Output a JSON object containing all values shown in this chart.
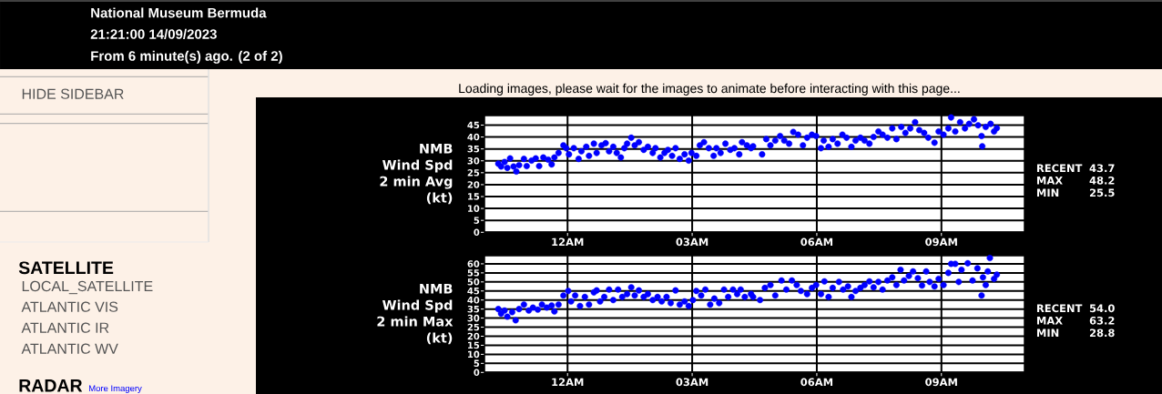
{
  "chart_data": [
    {
      "type": "other",
      "title": "National Museum Bermuda",
      "subtitle": "21:21:00 14/09/2023",
      "annotations": [
        "From 6 minute(s) ago. (2 of 2)",
        "Loading images, please wait for the images to animate before interacting with this page...",
        "HIDE SIDEBAR",
        "SATELLITE",
        "LOCAL_SATELLITE",
        "ATLANTIC VIS",
        "ATLANTIC IR",
        "ATLANTIC WV",
        "RADAR",
        "More Imagery"
      ]
    },
    {
      "type": "scatter",
      "ylabel": "NMB\nWind Spd\n2 min Avg\n(kt)",
      "annotations": [
        "RECENT",
        "43.7",
        "MAX",
        "48.2",
        "MIN",
        "25.5"
      ],
      "x": [
        "2023-09-13T22:20",
        "2023-09-13T22:24",
        "2023-09-13T22:29",
        "2023-09-13T22:33",
        "2023-09-13T22:37",
        "2023-09-13T22:42",
        "2023-09-13T22:46",
        "2023-09-13T22:50",
        "2023-09-13T22:57",
        "2023-09-13T23:01",
        "2023-09-13T23:08",
        "2023-09-13T23:14",
        "2023-09-13T23:19",
        "2023-09-13T23:25",
        "2023-09-13T23:32",
        "2023-09-13T23:37",
        "2023-09-13T23:41",
        "2023-09-13T23:47",
        "2023-09-13T23:54",
        "2023-09-13T23:58",
        "2023-09-14T00:02",
        "2023-09-14T00:09",
        "2023-09-14T00:16",
        "2023-09-14T00:20",
        "2023-09-14T00:27",
        "2023-09-14T00:31",
        "2023-09-14T00:38",
        "2023-09-14T00:42",
        "2023-09-14T00:49",
        "2023-09-14T00:55",
        "2023-09-14T01:00",
        "2023-09-14T01:06",
        "2023-09-14T01:11",
        "2023-09-14T01:17",
        "2023-09-14T01:22",
        "2023-09-14T01:26",
        "2023-09-14T01:32",
        "2023-09-14T01:37",
        "2023-09-14T01:43",
        "2023-09-14T01:50",
        "2023-09-14T01:56",
        "2023-09-14T02:03",
        "2023-09-14T02:07",
        "2023-09-14T02:14",
        "2023-09-14T02:20",
        "2023-09-14T02:25",
        "2023-09-14T02:31",
        "2023-09-14T02:36",
        "2023-09-14T02:42",
        "2023-09-14T02:49",
        "2023-09-14T02:55",
        "2023-09-14T02:59",
        "2023-09-14T03:06",
        "2023-09-14T03:11",
        "2023-09-14T03:17",
        "2023-09-14T03:24",
        "2023-09-14T03:31",
        "2023-09-14T03:35",
        "2023-09-14T03:41",
        "2023-09-14T03:48",
        "2023-09-14T03:55",
        "2023-09-14T04:01",
        "2023-09-14T04:08",
        "2023-09-14T04:12",
        "2023-09-14T04:19",
        "2023-09-14T04:25",
        "2023-09-14T04:28",
        "2023-09-14T04:41",
        "2023-09-14T04:47",
        "2023-09-14T04:53",
        "2023-09-14T05:00",
        "2023-09-14T05:07",
        "2023-09-14T05:13",
        "2023-09-14T05:20",
        "2023-09-14T05:26",
        "2023-09-14T05:33",
        "2023-09-14T05:40",
        "2023-09-14T05:46",
        "2023-09-14T05:53",
        "2023-09-14T05:59",
        "2023-09-14T06:06",
        "2023-09-14T06:10",
        "2023-09-14T06:17",
        "2023-09-14T06:23",
        "2023-09-14T06:30",
        "2023-09-14T06:37",
        "2023-09-14T06:43",
        "2023-09-14T06:50",
        "2023-09-14T06:56",
        "2023-09-14T07:03",
        "2023-09-14T07:09",
        "2023-09-14T07:16",
        "2023-09-14T07:22",
        "2023-09-14T07:29",
        "2023-09-14T07:35",
        "2023-09-14T07:42",
        "2023-09-14T07:49",
        "2023-09-14T07:55",
        "2023-09-14T08:02",
        "2023-09-14T08:08",
        "2023-09-14T08:15",
        "2023-09-14T08:22",
        "2023-09-14T08:28",
        "2023-09-14T08:35",
        "2023-09-14T08:41",
        "2023-09-14T08:50",
        "2023-09-14T08:56",
        "2023-09-14T09:03",
        "2023-09-14T09:10",
        "2023-09-14T09:14",
        "2023-09-14T09:20",
        "2023-09-14T09:27",
        "2023-09-14T09:34",
        "2023-09-14T09:40",
        "2023-09-14T09:47",
        "2023-09-14T09:53",
        "2023-09-14T09:58",
        "2023-09-14T09:59",
        "2023-09-14T10:04",
        "2023-09-14T10:11",
        "2023-09-14T10:16",
        "2023-09-14T10:20"
      ],
      "values": [
        28.8,
        27.6,
        29.5,
        27.0,
        31.0,
        27.6,
        25.5,
        28.2,
        30.8,
        27.8,
        30.1,
        31.0,
        27.8,
        31.4,
        30.5,
        28.5,
        31.4,
        33.3,
        36.5,
        35.3,
        32.7,
        35.3,
        30.8,
        34.0,
        35.9,
        32.1,
        37.2,
        33.3,
        36.5,
        37.4,
        34.0,
        35.9,
        33.3,
        31.4,
        35.3,
        37.2,
        39.7,
        36.5,
        37.8,
        34.6,
        35.9,
        33.3,
        35.3,
        31.4,
        33.3,
        34.6,
        32.1,
        35.3,
        30.8,
        32.7,
        30.1,
        33.3,
        32.1,
        36.5,
        37.8,
        35.3,
        32.1,
        35.3,
        33.3,
        37.2,
        34.6,
        35.3,
        32.7,
        37.8,
        36.5,
        35.3,
        36.1,
        32.7,
        39.1,
        36.5,
        38.5,
        40.4,
        38.5,
        37.2,
        42.1,
        41.0,
        36.5,
        39.7,
        41.0,
        40.4,
        35.3,
        38.5,
        35.9,
        39.1,
        37.2,
        41.0,
        39.7,
        35.9,
        38.5,
        39.7,
        38.5,
        37.2,
        40.0,
        42.3,
        41.0,
        39.7,
        43.6,
        39.1,
        44.2,
        41.7,
        43.6,
        46.2,
        42.9,
        41.7,
        39.7,
        37.6,
        42.3,
        41.0,
        43.6,
        48.2,
        42.3,
        46.2,
        43.6,
        45.5,
        47.4,
        44.9,
        40.4,
        36.1,
        44.2,
        45.5,
        42.3,
        43.7
      ],
      "color": "#0000ff",
      "marker": "circle",
      "grid": true,
      "xlim": [
        "2023-09-13T22:00",
        "2023-09-14T11:00"
      ],
      "ylim": [
        0,
        49
      ],
      "xticks": [
        {
          "value": "2023-09-14T00:00",
          "label": "12AM"
        },
        {
          "value": "2023-09-14T03:00",
          "label": "03AM"
        },
        {
          "value": "2023-09-14T06:00",
          "label": "06AM"
        },
        {
          "value": "2023-09-14T09:00",
          "label": "09AM"
        }
      ],
      "yticks": [
        0,
        5,
        10,
        15,
        20,
        25,
        30,
        35,
        40,
        45
      ]
    },
    {
      "type": "scatter",
      "ylabel": "NMB\nWind Spd\n2 min Max\n(kt)",
      "annotations": [
        "RECENT",
        "54.0",
        "MAX",
        "63.2",
        "MIN",
        "28.8"
      ],
      "x": [
        "2023-09-13T22:20",
        "2023-09-13T22:24",
        "2023-09-13T22:29",
        "2023-09-13T22:33",
        "2023-09-13T22:40",
        "2023-09-13T22:45",
        "2023-09-13T22:50",
        "2023-09-13T22:57",
        "2023-09-13T23:04",
        "2023-09-13T23:10",
        "2023-09-13T23:17",
        "2023-09-13T23:23",
        "2023-09-13T23:30",
        "2023-09-13T23:37",
        "2023-09-13T23:41",
        "2023-09-13T23:47",
        "2023-09-13T23:54",
        "2023-09-14T00:01",
        "2023-09-14T00:05",
        "2023-09-14T00:11",
        "2023-09-14T00:18",
        "2023-09-14T00:25",
        "2023-09-14T00:31",
        "2023-09-14T00:38",
        "2023-09-14T00:42",
        "2023-09-14T00:47",
        "2023-09-14T00:53",
        "2023-09-14T01:00",
        "2023-09-14T01:06",
        "2023-09-14T01:13",
        "2023-09-14T01:19",
        "2023-09-14T01:26",
        "2023-09-14T01:32",
        "2023-09-14T01:37",
        "2023-09-14T01:43",
        "2023-09-14T01:50",
        "2023-09-14T01:56",
        "2023-09-14T02:03",
        "2023-09-14T02:10",
        "2023-09-14T02:16",
        "2023-09-14T02:23",
        "2023-09-14T02:29",
        "2023-09-14T02:36",
        "2023-09-14T02:42",
        "2023-09-14T02:49",
        "2023-09-14T02:55",
        "2023-09-14T03:01",
        "2023-09-14T03:06",
        "2023-09-14T03:13",
        "2023-09-14T03:19",
        "2023-09-14T03:26",
        "2023-09-14T03:32",
        "2023-09-14T03:39",
        "2023-09-14T03:46",
        "2023-09-14T03:52",
        "2023-09-14T03:59",
        "2023-09-14T04:05",
        "2023-09-14T04:10",
        "2023-09-14T04:16",
        "2023-09-14T04:25",
        "2023-09-14T04:28",
        "2023-09-14T04:38",
        "2023-09-14T04:45",
        "2023-09-14T04:53",
        "2023-09-14T05:00",
        "2023-09-14T05:09",
        "2023-09-14T05:16",
        "2023-09-14T05:24",
        "2023-09-14T05:31",
        "2023-09-14T05:37",
        "2023-09-14T05:46",
        "2023-09-14T05:53",
        "2023-09-14T05:59",
        "2023-09-14T06:06",
        "2023-09-14T06:11",
        "2023-09-14T06:17",
        "2023-09-14T06:23",
        "2023-09-14T06:32",
        "2023-09-14T06:38",
        "2023-09-14T06:45",
        "2023-09-14T06:50",
        "2023-09-14T06:56",
        "2023-09-14T07:03",
        "2023-09-14T07:09",
        "2023-09-14T07:16",
        "2023-09-14T07:22",
        "2023-09-14T07:29",
        "2023-09-14T07:35",
        "2023-09-14T07:42",
        "2023-09-14T07:49",
        "2023-09-14T07:55",
        "2023-09-14T08:01",
        "2023-09-14T08:06",
        "2023-09-14T08:13",
        "2023-09-14T08:19",
        "2023-09-14T08:26",
        "2023-09-14T08:32",
        "2023-09-14T08:38",
        "2023-09-14T08:43",
        "2023-09-14T08:50",
        "2023-09-14T08:56",
        "2023-09-14T09:03",
        "2023-09-14T09:10",
        "2023-09-14T09:14",
        "2023-09-14T09:20",
        "2023-09-14T09:25",
        "2023-09-14T09:29",
        "2023-09-14T09:38",
        "2023-09-14T09:45",
        "2023-09-14T09:52",
        "2023-09-14T09:58",
        "2023-09-14T10:00",
        "2023-09-14T10:04",
        "2023-09-14T10:07",
        "2023-09-14T10:10",
        "2023-09-14T10:16",
        "2023-09-14T10:20"
      ],
      "values": [
        35.0,
        32.5,
        34.2,
        30.8,
        33.3,
        28.8,
        35.0,
        37.5,
        34.2,
        35.8,
        34.7,
        37.5,
        35.8,
        37.0,
        33.7,
        37.5,
        42.5,
        45.0,
        39.2,
        42.5,
        36.7,
        41.7,
        37.5,
        44.2,
        45.3,
        39.2,
        41.7,
        45.8,
        40.0,
        45.8,
        41.7,
        43.3,
        47.0,
        42.5,
        45.3,
        41.7,
        43.3,
        40.0,
        41.7,
        39.2,
        41.7,
        38.3,
        45.3,
        37.5,
        39.2,
        36.7,
        40.0,
        45.0,
        42.5,
        45.8,
        37.5,
        40.8,
        38.3,
        45.8,
        41.7,
        45.8,
        43.3,
        45.8,
        41.7,
        43.3,
        41.7,
        40.0,
        46.7,
        48.3,
        42.5,
        50.8,
        45.8,
        50.8,
        48.3,
        45.0,
        43.3,
        46.7,
        48.3,
        43.3,
        50.3,
        41.7,
        46.7,
        50.0,
        45.8,
        47.5,
        41.7,
        45.0,
        46.7,
        48.3,
        50.3,
        47.0,
        50.0,
        45.8,
        50.8,
        52.5,
        48.3,
        56.7,
        50.8,
        53.3,
        55.8,
        52.0,
        48.0,
        55.8,
        50.0,
        47.5,
        51.7,
        48.3,
        55.0,
        60.0,
        60.0,
        50.0,
        56.7,
        60.3,
        50.8,
        57.5,
        42.5,
        52.5,
        48.3,
        55.8,
        63.2,
        51.7,
        54.0
      ],
      "color": "#0000ff",
      "marker": "circle",
      "grid": true,
      "xlim": [
        "2023-09-13T22:00",
        "2023-09-14T11:00"
      ],
      "ylim": [
        0,
        64.5
      ],
      "xticks": [
        {
          "value": "2023-09-14T00:00",
          "label": "12AM"
        },
        {
          "value": "2023-09-14T03:00",
          "label": "03AM"
        },
        {
          "value": "2023-09-14T06:00",
          "label": "06AM"
        },
        {
          "value": "2023-09-14T09:00",
          "label": "09AM"
        }
      ],
      "yticks": [
        0,
        5,
        10,
        15,
        20,
        25,
        30,
        35,
        40,
        45,
        50,
        55,
        60
      ]
    }
  ]
}
